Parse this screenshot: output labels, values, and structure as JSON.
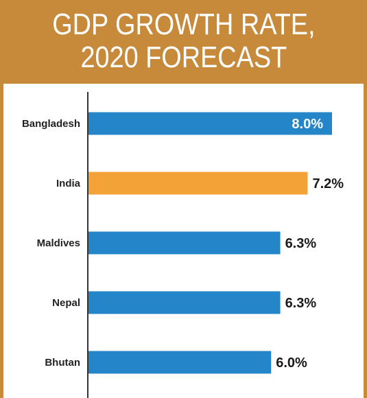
{
  "chart_data": {
    "type": "bar",
    "orientation": "horizontal",
    "title_lines": [
      "GDP GROWTH RATE,",
      "2020 FORECAST"
    ],
    "categories": [
      "Bangladesh",
      "India",
      "Maldives",
      "Nepal",
      "Bhutan"
    ],
    "values": [
      8.0,
      7.2,
      6.3,
      6.3,
      6.0
    ],
    "value_labels": [
      "8.0%",
      "7.2%",
      "6.3%",
      "6.3%",
      "6.0%"
    ],
    "colors": [
      "#2585c9",
      "#f2a236",
      "#2585c9",
      "#2585c9",
      "#2585c9"
    ],
    "value_label_inside": [
      true,
      false,
      false,
      false,
      false
    ],
    "xlim": [
      0,
      8.0
    ],
    "grid": false,
    "legend": "none",
    "frame_color": "#c68a3a"
  }
}
